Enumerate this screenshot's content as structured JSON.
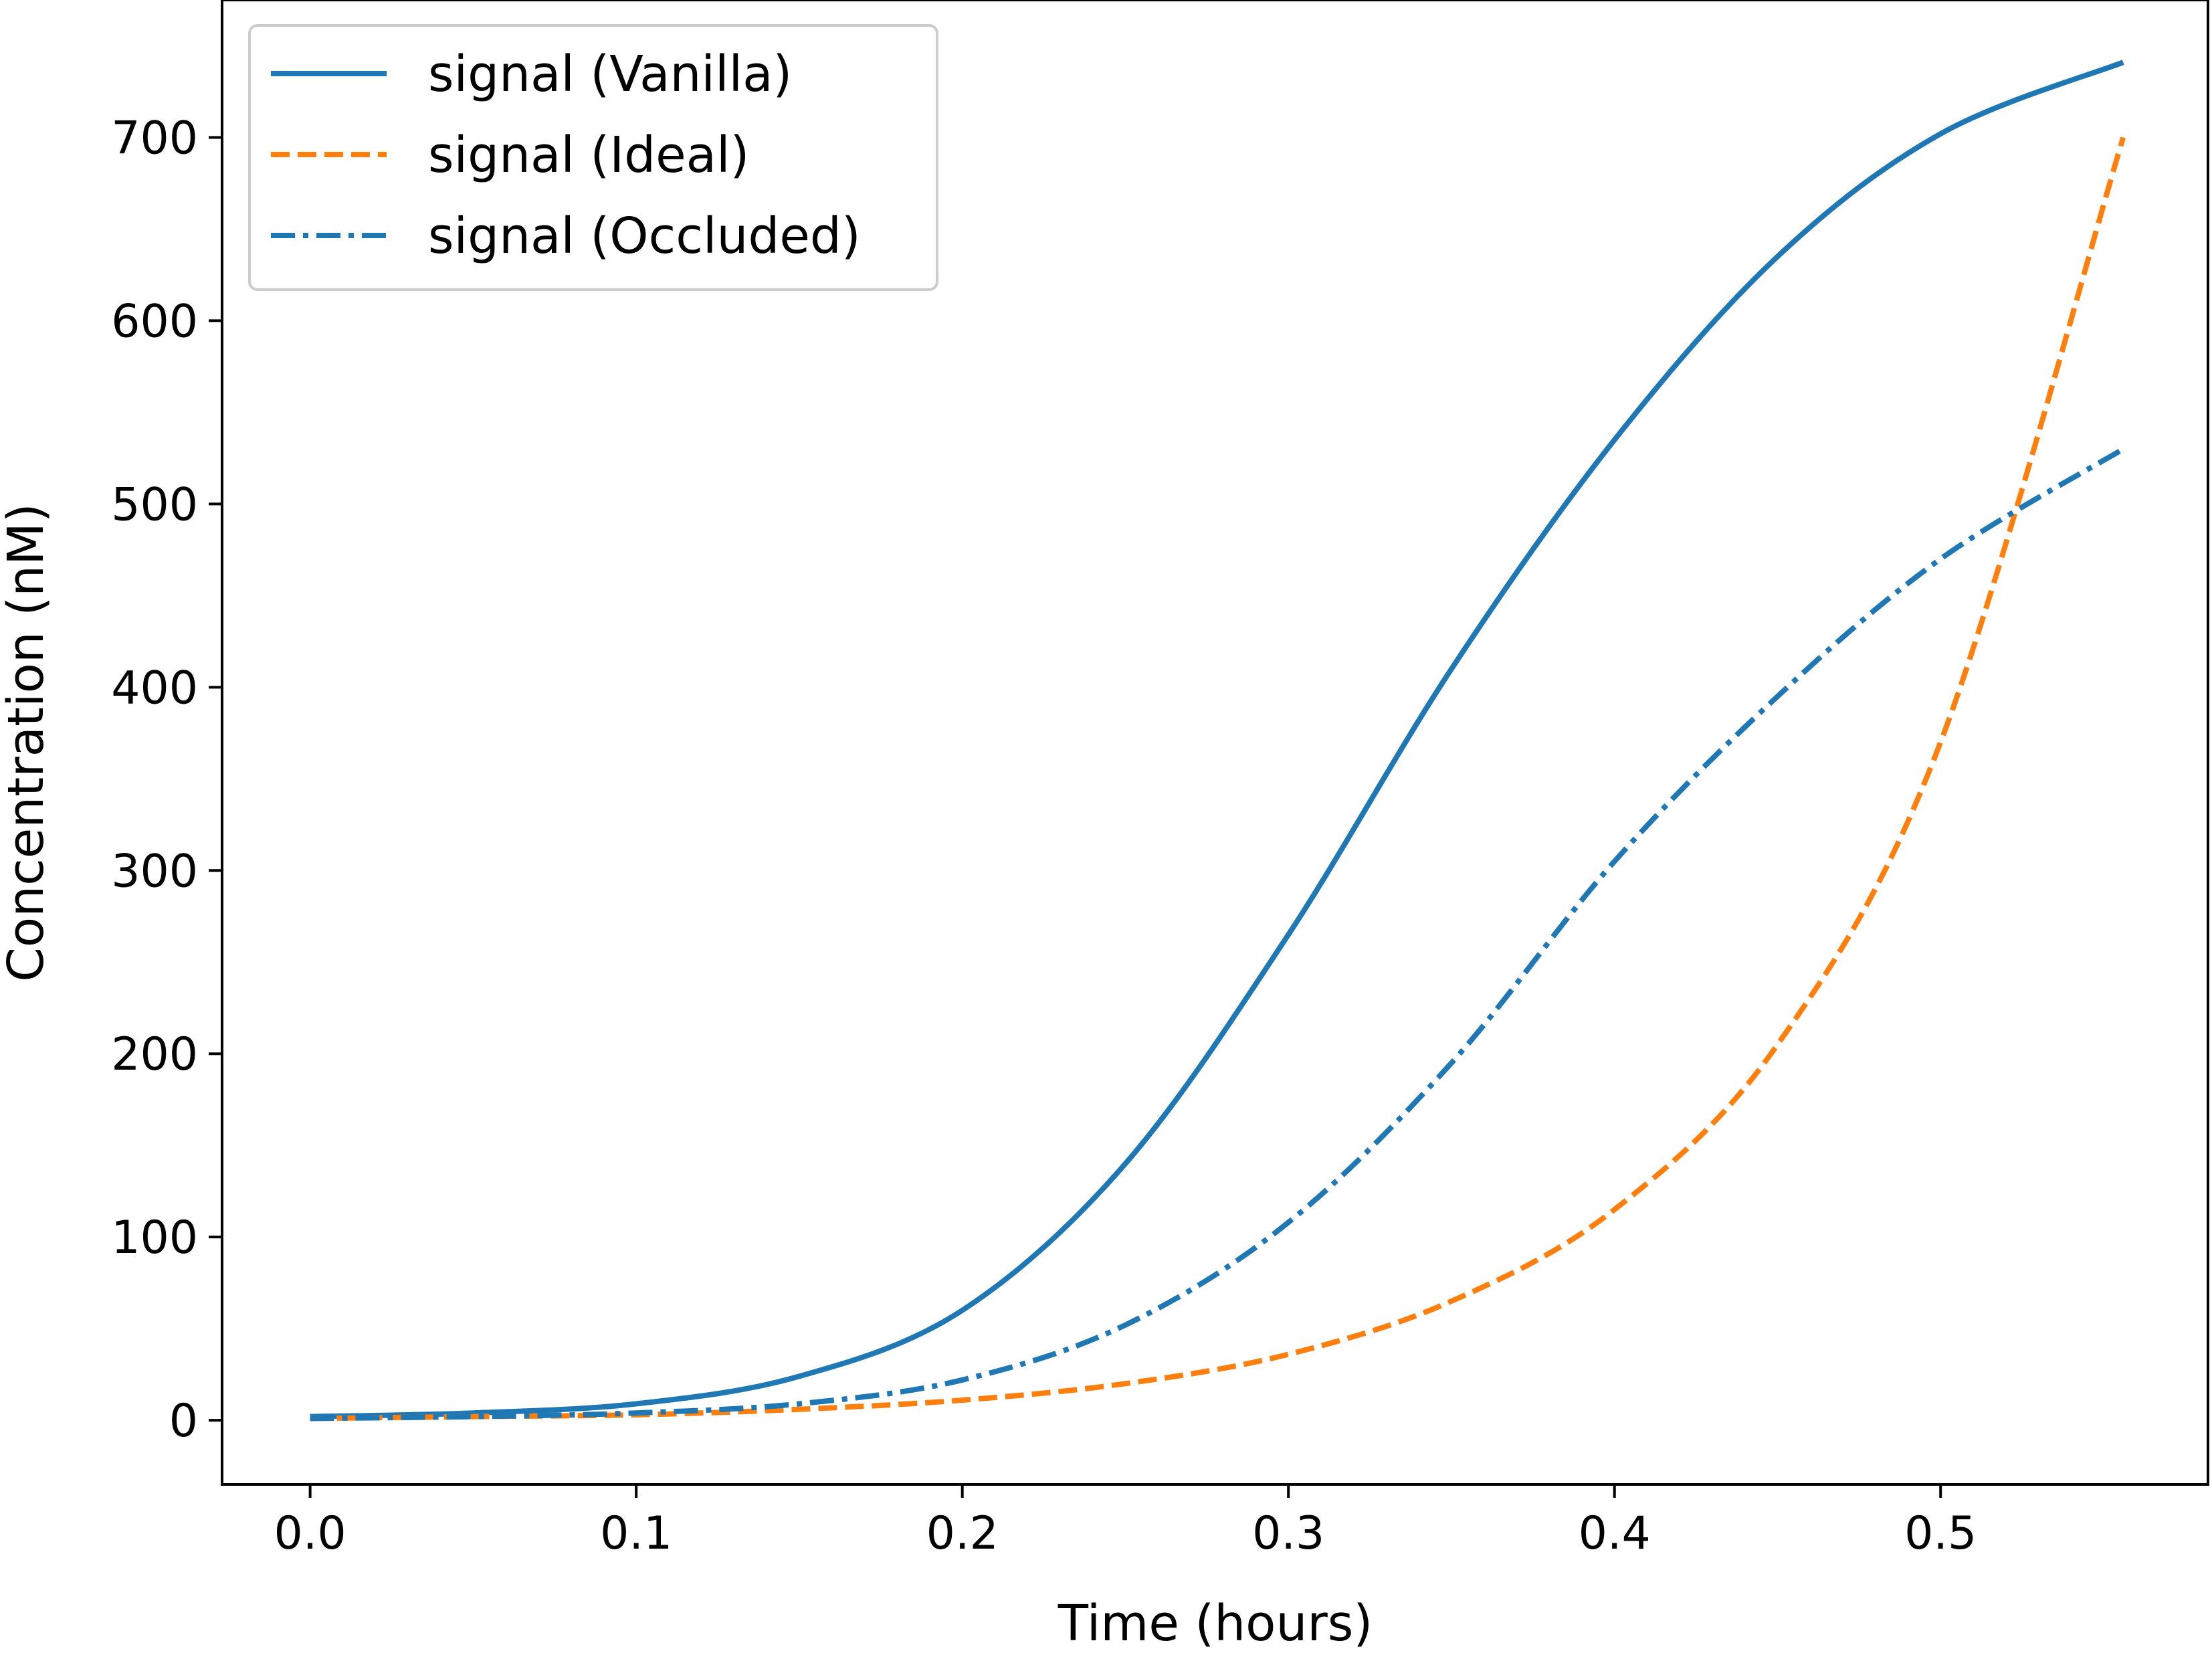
{
  "chart_data": {
    "type": "line",
    "title": "",
    "xlabel": "Time (hours)",
    "ylabel": "Concentration (nM)",
    "xlim": [
      -0.027,
      0.582
    ],
    "ylim": [
      -35,
      775
    ],
    "xticks": [
      0.0,
      0.1,
      0.2,
      0.3,
      0.4,
      0.5
    ],
    "xtick_labels": [
      "0.0",
      "0.1",
      "0.2",
      "0.3",
      "0.4",
      "0.5"
    ],
    "yticks": [
      0,
      100,
      200,
      300,
      400,
      500,
      600,
      700
    ],
    "ytick_labels": [
      "0",
      "100",
      "200",
      "300",
      "400",
      "500",
      "600",
      "700"
    ],
    "grid": false,
    "legend_position": "top-left",
    "series": [
      {
        "name": "signal (Vanilla)",
        "color": "#1f77b4",
        "style": "solid",
        "x": [
          0.0,
          0.05,
          0.1,
          0.15,
          0.2,
          0.25,
          0.3,
          0.35,
          0.4,
          0.45,
          0.5,
          0.556
        ],
        "y": [
          2,
          4,
          9,
          24,
          60,
          140,
          265,
          410,
          535,
          635,
          702,
          741
        ]
      },
      {
        "name": "signal (Ideal)",
        "color": "#ff7f0e",
        "style": "dashed",
        "x": [
          0.0,
          0.05,
          0.1,
          0.15,
          0.2,
          0.25,
          0.3,
          0.35,
          0.4,
          0.45,
          0.5,
          0.556
        ],
        "y": [
          1,
          2,
          3,
          6,
          11,
          20,
          36,
          65,
          115,
          205,
          370,
          700
        ]
      },
      {
        "name": "signal (Occluded)",
        "color": "#1f77b4",
        "style": "dashdot",
        "x": [
          0.0,
          0.05,
          0.1,
          0.15,
          0.2,
          0.25,
          0.3,
          0.35,
          0.4,
          0.45,
          0.5,
          0.556
        ],
        "y": [
          1,
          2,
          4,
          9,
          22,
          52,
          108,
          195,
          305,
          395,
          470,
          530
        ]
      }
    ]
  }
}
